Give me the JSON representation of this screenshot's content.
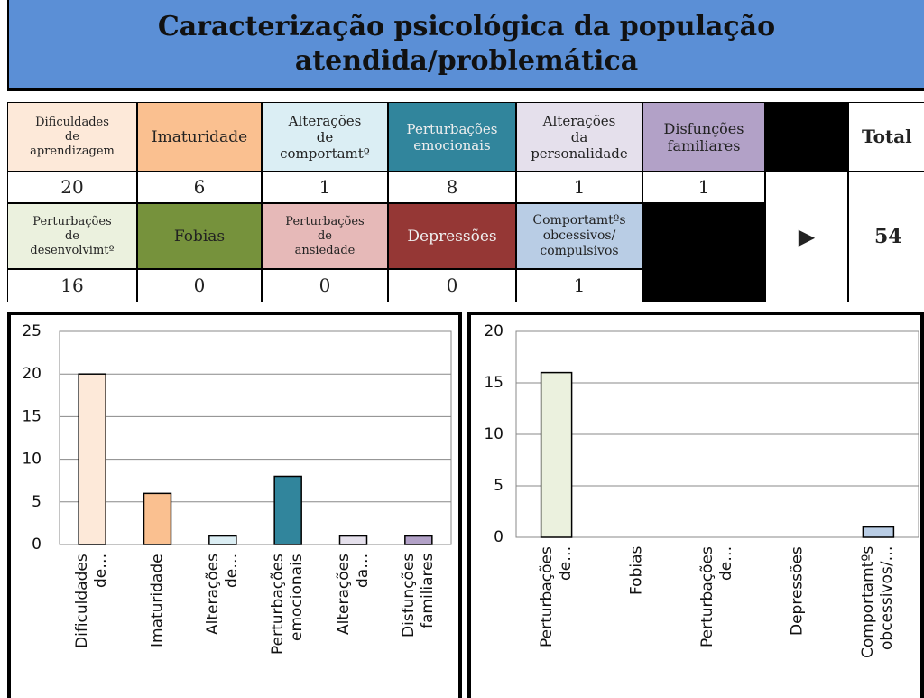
{
  "header": {
    "title": "Caracterização psicológica da população\natendida/problemática"
  },
  "table": {
    "row_1": [
      "Dificuldades\nde\naprendizagem",
      "Imaturidade",
      "Alterações\nde\ncomportamtº",
      "Perturbações\nemocionais",
      "Alterações\nda\npersonalidade",
      "Disfunções\nfamiliares"
    ],
    "total_label": "Total",
    "row_2": [
      20,
      6,
      1,
      8,
      1,
      1
    ],
    "row_3": [
      "Perturbações\nde\ndesenvolvimtº",
      "Fobias",
      "Perturbações\nde\nansiedade",
      "Depressões",
      "Comportamtºs\nobcessivos/\ncompulsivos"
    ],
    "arrow": "▶",
    "total": 54,
    "row_4": [
      16,
      0,
      0,
      0,
      1
    ]
  },
  "chart_data": [
    {
      "type": "bar",
      "categories": [
        "Dificuldades de…",
        "Imaturidade",
        "Alterações de…",
        "Perturbações emocionais",
        "Alterações da…",
        "Disfunções familiares"
      ],
      "values": [
        20,
        6,
        1,
        8,
        1,
        1
      ],
      "colors": [
        "#fde9d9",
        "#fac090",
        "#dbeef4",
        "#31859c",
        "#e5e0ec",
        "#b2a1c7"
      ],
      "ylim": [
        0,
        25
      ],
      "yticks": [
        0,
        5,
        10,
        15,
        20,
        25
      ],
      "grid": true
    },
    {
      "type": "bar",
      "categories": [
        "Perturbações de…",
        "Fobias",
        "Perturbações de…",
        "Depressões",
        "Comportamtºs obcessivos/…"
      ],
      "values": [
        16,
        0,
        0,
        0,
        1
      ],
      "colors": [
        "#ebf1de",
        "#76923c",
        "#e6b9b8",
        "#953735",
        "#b9cde5"
      ],
      "ylim": [
        0,
        20
      ],
      "yticks": [
        0,
        5,
        10,
        15,
        20
      ],
      "grid": true
    }
  ]
}
